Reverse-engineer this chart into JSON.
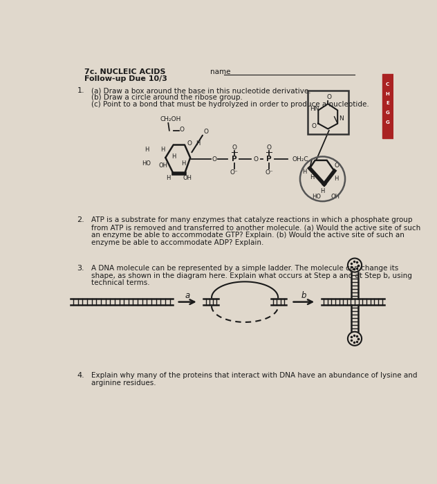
{
  "paper_color": "#e0d8cc",
  "text_color": "#1a1a1a",
  "dark_color": "#1a1a1a",
  "title_line1": "7c. NUCLEIC ACIDS",
  "title_line2": "Follow-up Due 10/3",
  "name_label": "name",
  "q1a": "(a) Draw a box around the base in this nucleotide derivative.",
  "q1b": "(b) Draw a circle around the ribose group.",
  "q1c": "(c) Point to a bond that must be hydrolyzed in order to produce a nucleotide.",
  "q2_text": "ATP is a substrate for many enzymes that catalyze reactions in which a phosphate group\nfrom ATP is removed and transferred to another molecule. (a) Would the active site of such\nan enzyme be able to accommodate GTP? Explain. (b) Would the active site of such an\nenzyme be able to accommodate ADP? Explain.",
  "q3_text": "A DNA molecule can be represented by a simple ladder. The molecule can change its\nshape, as shown in the diagram here. Explain what occurs at Step a and at Step b, using\ntechnical terms.",
  "q4_text": "Explain why many of the proteins that interact with DNA have an abundance of lysine and\narginine residues.",
  "red_tab_color": "#aa2222"
}
